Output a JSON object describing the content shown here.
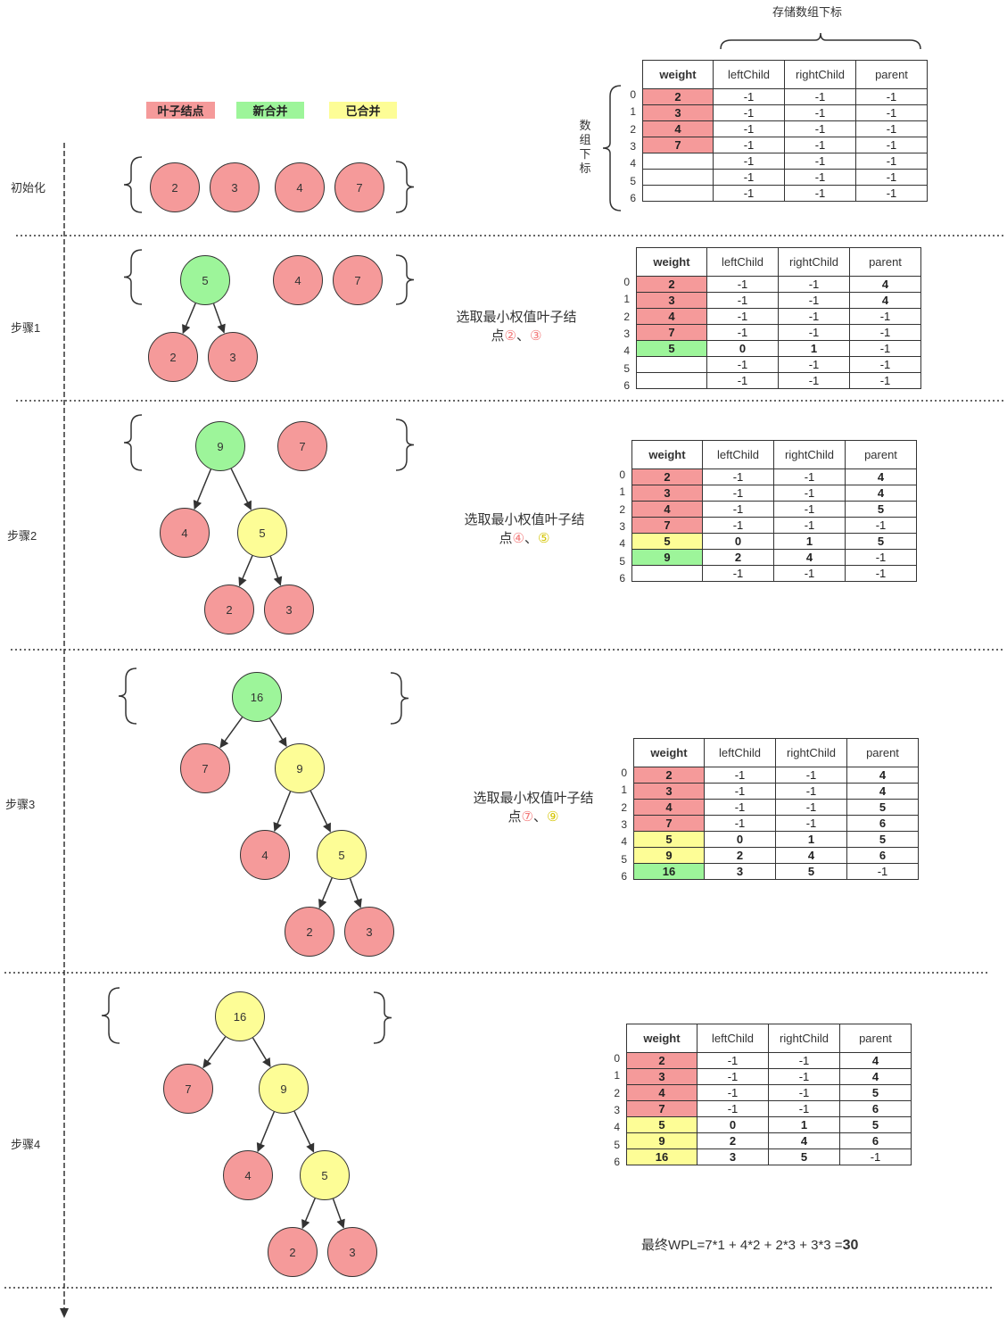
{
  "legend": {
    "leaf": "叶子结点",
    "new_merged": "新合并",
    "merged": "已合并",
    "colors": {
      "leaf": "#f59a9a",
      "new_merged": "#9df59a",
      "merged": "#fdfd96"
    }
  },
  "header": {
    "storage_index": "存储数组下标",
    "array_index": [
      "数",
      "组",
      "下",
      "标"
    ]
  },
  "table_headers": [
    "weight",
    "leftChild",
    "rightChild",
    "parent"
  ],
  "steps": [
    {
      "label": "初始化",
      "description": null,
      "nodes": [
        {
          "value": "2",
          "color": "pink"
        },
        {
          "value": "3",
          "color": "pink"
        },
        {
          "value": "4",
          "color": "pink"
        },
        {
          "value": "7",
          "color": "pink"
        }
      ],
      "rows": [
        {
          "index": "0",
          "weight": "2",
          "left": "-1",
          "right": "-1",
          "parent": "-1",
          "color": "pink"
        },
        {
          "index": "1",
          "weight": "3",
          "left": "-1",
          "right": "-1",
          "parent": "-1",
          "color": "pink"
        },
        {
          "index": "2",
          "weight": "4",
          "left": "-1",
          "right": "-1",
          "parent": "-1",
          "color": "pink"
        },
        {
          "index": "3",
          "weight": "7",
          "left": "-1",
          "right": "-1",
          "parent": "-1",
          "color": "pink"
        },
        {
          "index": "4",
          "weight": "",
          "left": "-1",
          "right": "-1",
          "parent": "-1",
          "color": "none"
        },
        {
          "index": "5",
          "weight": "",
          "left": "-1",
          "right": "-1",
          "parent": "-1",
          "color": "none"
        },
        {
          "index": "6",
          "weight": "",
          "left": "-1",
          "right": "-1",
          "parent": "-1",
          "color": "none"
        }
      ]
    },
    {
      "label": "步骤1",
      "description": {
        "line1": "选取最小权值叶子结",
        "prefix": "点",
        "first": "②",
        "sep": "、",
        "second": "③"
      },
      "nodes": [
        {
          "value": "5",
          "color": "green"
        },
        {
          "value": "4",
          "color": "pink"
        },
        {
          "value": "7",
          "color": "pink"
        },
        {
          "value": "2",
          "color": "pink"
        },
        {
          "value": "3",
          "color": "pink"
        }
      ],
      "rows": [
        {
          "index": "0",
          "weight": "2",
          "left": "-1",
          "right": "-1",
          "parent": "4",
          "color": "pink"
        },
        {
          "index": "1",
          "weight": "3",
          "left": "-1",
          "right": "-1",
          "parent": "4",
          "color": "pink"
        },
        {
          "index": "2",
          "weight": "4",
          "left": "-1",
          "right": "-1",
          "parent": "-1",
          "color": "pink"
        },
        {
          "index": "3",
          "weight": "7",
          "left": "-1",
          "right": "-1",
          "parent": "-1",
          "color": "pink"
        },
        {
          "index": "4",
          "weight": "5",
          "left": "0",
          "right": "1",
          "parent": "-1",
          "color": "green"
        },
        {
          "index": "5",
          "weight": "",
          "left": "-1",
          "right": "-1",
          "parent": "-1",
          "color": "none"
        },
        {
          "index": "6",
          "weight": "",
          "left": "-1",
          "right": "-1",
          "parent": "-1",
          "color": "none"
        }
      ]
    },
    {
      "label": "步骤2",
      "description": {
        "line1": "选取最小权值叶子结",
        "prefix": "点",
        "first": "④",
        "sep": "、",
        "second": "⑤"
      },
      "nodes": [
        {
          "value": "9",
          "color": "green"
        },
        {
          "value": "7",
          "color": "pink"
        },
        {
          "value": "4",
          "color": "pink"
        },
        {
          "value": "5",
          "color": "yellow"
        },
        {
          "value": "2",
          "color": "pink"
        },
        {
          "value": "3",
          "color": "pink"
        }
      ],
      "rows": [
        {
          "index": "0",
          "weight": "2",
          "left": "-1",
          "right": "-1",
          "parent": "4",
          "color": "pink"
        },
        {
          "index": "1",
          "weight": "3",
          "left": "-1",
          "right": "-1",
          "parent": "4",
          "color": "pink"
        },
        {
          "index": "2",
          "weight": "4",
          "left": "-1",
          "right": "-1",
          "parent": "5",
          "color": "pink"
        },
        {
          "index": "3",
          "weight": "7",
          "left": "-1",
          "right": "-1",
          "parent": "-1",
          "color": "pink"
        },
        {
          "index": "4",
          "weight": "5",
          "left": "0",
          "right": "1",
          "parent": "5",
          "color": "yellow"
        },
        {
          "index": "5",
          "weight": "9",
          "left": "2",
          "right": "4",
          "parent": "-1",
          "color": "green"
        },
        {
          "index": "6",
          "weight": "",
          "left": "-1",
          "right": "-1",
          "parent": "-1",
          "color": "none"
        }
      ]
    },
    {
      "label": "步骤3",
      "description": {
        "line1": "选取最小权值叶子结",
        "prefix": "点",
        "first": "⑦",
        "sep": "、",
        "second": "⑨"
      },
      "nodes": [
        {
          "value": "16",
          "color": "green"
        },
        {
          "value": "7",
          "color": "pink"
        },
        {
          "value": "9",
          "color": "yellow"
        },
        {
          "value": "4",
          "color": "pink"
        },
        {
          "value": "5",
          "color": "yellow"
        },
        {
          "value": "2",
          "color": "pink"
        },
        {
          "value": "3",
          "color": "pink"
        }
      ],
      "rows": [
        {
          "index": "0",
          "weight": "2",
          "left": "-1",
          "right": "-1",
          "parent": "4",
          "color": "pink"
        },
        {
          "index": "1",
          "weight": "3",
          "left": "-1",
          "right": "-1",
          "parent": "4",
          "color": "pink"
        },
        {
          "index": "2",
          "weight": "4",
          "left": "-1",
          "right": "-1",
          "parent": "5",
          "color": "pink"
        },
        {
          "index": "3",
          "weight": "7",
          "left": "-1",
          "right": "-1",
          "parent": "6",
          "color": "pink"
        },
        {
          "index": "4",
          "weight": "5",
          "left": "0",
          "right": "1",
          "parent": "5",
          "color": "yellow"
        },
        {
          "index": "5",
          "weight": "9",
          "left": "2",
          "right": "4",
          "parent": "6",
          "color": "yellow"
        },
        {
          "index": "6",
          "weight": "16",
          "left": "3",
          "right": "5",
          "parent": "-1",
          "color": "green"
        }
      ]
    },
    {
      "label": "步骤4",
      "description": null,
      "nodes": [
        {
          "value": "16",
          "color": "yellow"
        },
        {
          "value": "7",
          "color": "pink"
        },
        {
          "value": "9",
          "color": "yellow"
        },
        {
          "value": "4",
          "color": "pink"
        },
        {
          "value": "5",
          "color": "yellow"
        },
        {
          "value": "2",
          "color": "pink"
        },
        {
          "value": "3",
          "color": "pink"
        }
      ],
      "rows": [
        {
          "index": "0",
          "weight": "2",
          "left": "-1",
          "right": "-1",
          "parent": "4",
          "color": "pink"
        },
        {
          "index": "1",
          "weight": "3",
          "left": "-1",
          "right": "-1",
          "parent": "4",
          "color": "pink"
        },
        {
          "index": "2",
          "weight": "4",
          "left": "-1",
          "right": "-1",
          "parent": "5",
          "color": "pink"
        },
        {
          "index": "3",
          "weight": "7",
          "left": "-1",
          "right": "-1",
          "parent": "6",
          "color": "pink"
        },
        {
          "index": "4",
          "weight": "5",
          "left": "0",
          "right": "1",
          "parent": "5",
          "color": "yellow"
        },
        {
          "index": "5",
          "weight": "9",
          "left": "2",
          "right": "4",
          "parent": "6",
          "color": "yellow"
        },
        {
          "index": "6",
          "weight": "16",
          "left": "3",
          "right": "5",
          "parent": "-1",
          "color": "yellow"
        }
      ]
    }
  ],
  "wpl": {
    "prefix": "最终WPL=7*1 + 4*2 + 2*3 + 3*3 =",
    "result": "30"
  }
}
